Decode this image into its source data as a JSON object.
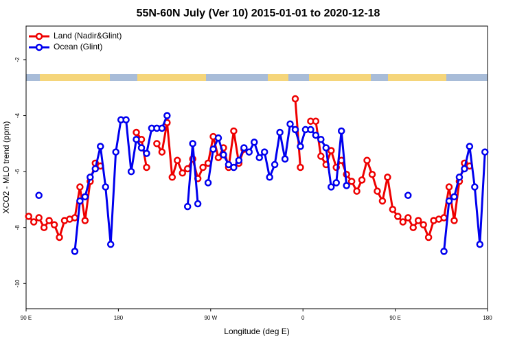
{
  "chart_data": {
    "type": "line",
    "title": "55N-60N July (Ver 10)   2015-01-01 to 2020-12-18",
    "x_label": "Longitude (deg E)",
    "y_label": "XCO2 - MLO trend (ppm)",
    "x": [
      92.5,
      97.5,
      102.5,
      107.5,
      112.5,
      117.5,
      122.5,
      127.5,
      132.5,
      137.5,
      142.5,
      147.5,
      152.5,
      157.5,
      162.5,
      167.5,
      172.5,
      177.5,
      182.5,
      187.5,
      192.5,
      197.5,
      202.5,
      207.5,
      212.5,
      217.5,
      222.5,
      227.5,
      232.5,
      237.5,
      242.5,
      247.5,
      252.5,
      257.5,
      262.5,
      267.5,
      272.5,
      277.5,
      282.5,
      287.5,
      292.5,
      297.5,
      302.5,
      307.5,
      312.5,
      317.5,
      322.5,
      327.5,
      332.5,
      337.5,
      342.5,
      347.5,
      352.5,
      357.5,
      362.5,
      367.5,
      372.5,
      377.5,
      382.5,
      387.5,
      392.5,
      397.5,
      402.5,
      407.5,
      412.5,
      417.5,
      422.5,
      427.5,
      432.5,
      437.5,
      442.5,
      447.5,
      452.5,
      457.5,
      462.5,
      467.5,
      472.5,
      477.5,
      482.5,
      487.5,
      492.5,
      497.5,
      502.5,
      507.5,
      512.5,
      517.5,
      522.5,
      527.5,
      532.5,
      537.5
    ],
    "series": [
      {
        "name": "Land (Nadir&Glint)",
        "color": "#ee0000",
        "values": [
          -7.6,
          -7.8,
          -7.65,
          -8.0,
          -7.75,
          -7.9,
          -8.35,
          -7.75,
          -7.7,
          -7.65,
          -6.55,
          -7.75,
          -6.35,
          -5.7,
          -5.8,
          null,
          null,
          null,
          null,
          null,
          null,
          -4.6,
          -4.85,
          -5.85,
          null,
          -5.0,
          -5.3,
          -4.25,
          -6.2,
          -5.6,
          -6.05,
          -5.9,
          -5.55,
          -6.25,
          -5.85,
          -5.7,
          -4.75,
          -5.5,
          -5.15,
          -5.85,
          -4.55,
          -5.7,
          -5.2,
          null,
          null,
          null,
          null,
          null,
          null,
          null,
          null,
          null,
          -3.4,
          -5.85,
          null,
          -4.2,
          -4.2,
          -5.45,
          -5.75,
          -5.25,
          -5.85,
          -5.6,
          -6.1,
          -6.35,
          -6.7,
          -6.3,
          -5.6,
          -6.1,
          -6.7,
          -7.05,
          -6.2,
          -7.35,
          -7.6,
          -7.8,
          -7.65,
          -8.0,
          -7.75,
          -7.9,
          -8.35,
          -7.75,
          -7.7,
          -7.65,
          -6.55,
          -7.75,
          -6.35,
          -5.7,
          -5.8,
          null,
          null,
          null
        ]
      },
      {
        "name": "Ocean (Glint)",
        "color": "#0000ee",
        "values": [
          null,
          null,
          -6.85,
          null,
          null,
          null,
          null,
          null,
          null,
          -8.85,
          -7.05,
          -6.9,
          -6.2,
          -5.9,
          -5.1,
          -6.55,
          -8.6,
          -5.3,
          -4.15,
          -4.15,
          -6.0,
          -4.85,
          -5.15,
          -5.35,
          -4.45,
          -4.45,
          -4.45,
          -4.0,
          null,
          null,
          null,
          -7.25,
          -5.0,
          -7.15,
          null,
          -6.4,
          -5.2,
          -4.8,
          -5.4,
          -5.75,
          -5.85,
          -5.6,
          -5.15,
          -5.3,
          -4.95,
          -5.5,
          -5.3,
          -6.2,
          -5.75,
          -4.6,
          -5.55,
          -4.3,
          -4.5,
          -5.1,
          -4.5,
          -4.5,
          -4.7,
          -4.85,
          -5.15,
          -6.55,
          -6.4,
          -4.55,
          -6.5,
          null,
          null,
          null,
          null,
          null,
          null,
          null,
          null,
          null,
          null,
          null,
          -6.85,
          null,
          null,
          null,
          null,
          null,
          null,
          -8.85,
          -7.05,
          -6.9,
          -6.2,
          -5.9,
          -5.1,
          -6.55,
          -8.6,
          -5.3
        ]
      }
    ],
    "xlim": [
      90,
      540
    ],
    "xticks": [
      {
        "value": 90,
        "label": "90 E"
      },
      180,
      {
        "value": 270,
        "label": "90 W"
      },
      {
        "value": 360,
        "label": "0"
      },
      {
        "value": 450,
        "label": "90 E"
      },
      {
        "value": 540,
        "label": "180"
      }
    ],
    "ylim": [
      -10.9,
      -0.8
    ],
    "yticks": [
      -2,
      -4,
      -6,
      -8,
      -10
    ],
    "legend": "upper left"
  }
}
